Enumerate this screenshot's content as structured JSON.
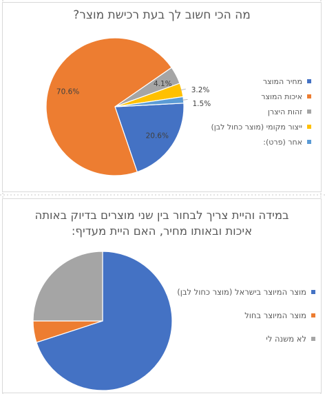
{
  "palette": [
    "#4472c4",
    "#ed7d31",
    "#a5a5a5",
    "#ffc000",
    "#5b9bd5"
  ],
  "chart_data": [
    {
      "type": "pie",
      "title": "מה הכי חשוב לך בעת רכישת מוצר?",
      "categories": [
        "מחיר המוצר",
        "איכות המוצר",
        "זהות היצרן",
        "ייצור מקומי (מוצר כחול לבן)",
        "אחר (פרט):"
      ],
      "values": [
        20.6,
        70.6,
        4.1,
        3.2,
        1.5
      ],
      "data_labels": [
        "20.6%",
        "70.6%",
        "4.1%",
        "3.2%",
        "1.5%"
      ],
      "colors": [
        "#4472c4",
        "#ed7d31",
        "#a5a5a5",
        "#ffc000",
        "#5b9bd5"
      ],
      "legend_position": "right"
    },
    {
      "type": "pie",
      "title": "במידה והיית צריך לבחור בין שני מוצרים בדיוק באותה איכות ובאותו מחיר, האם היית מעדיף:",
      "categories": [
        "מוצר המיוצר בישראל (מוצר כחול לבן)",
        "מוצר המיוצר בחול",
        "לא משנה לי"
      ],
      "values": [
        70,
        5,
        25
      ],
      "colors": [
        "#4472c4",
        "#ed7d31",
        "#a5a5a5"
      ],
      "legend_position": "right"
    }
  ]
}
